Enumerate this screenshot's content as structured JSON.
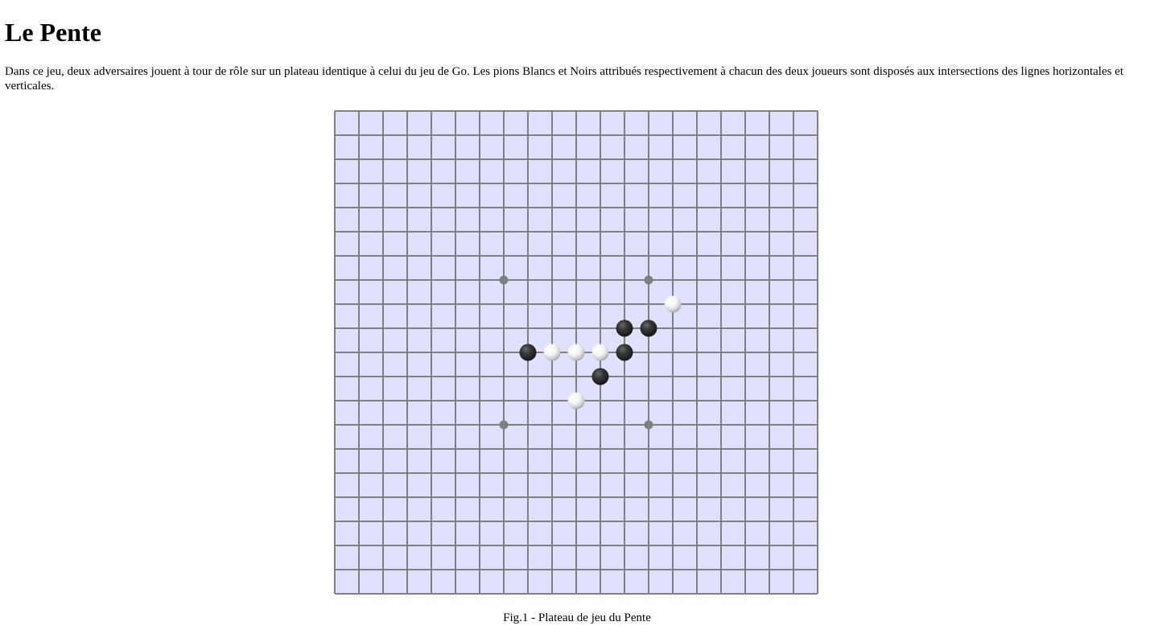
{
  "page": {
    "title": "Le Pente",
    "intro": "Dans ce jeu, deux adversaires jouent à tour de rôle sur un plateau identique à celui du jeu de Go. Les pions Blancs et Noirs attribués respectivement à chacun des deux joueurs sont disposés aux intersections des lignes horizontales et verticales.",
    "caption": "Fig.1 - Plateau de jeu du Pente"
  },
  "board": {
    "columns": 20,
    "rows": 20,
    "background_color": "#e0e0ff",
    "line_color": "#808080",
    "star_color": "#808080",
    "star_points": [
      {
        "col": 7,
        "row": 7
      },
      {
        "col": 13,
        "row": 7
      },
      {
        "col": 7,
        "row": 13
      },
      {
        "col": 13,
        "row": 13
      }
    ],
    "stones": [
      {
        "color": "white",
        "col": 14,
        "row": 8
      },
      {
        "color": "black",
        "col": 12,
        "row": 9
      },
      {
        "color": "black",
        "col": 13,
        "row": 9
      },
      {
        "color": "black",
        "col": 8,
        "row": 10
      },
      {
        "color": "white",
        "col": 9,
        "row": 10
      },
      {
        "color": "white",
        "col": 10,
        "row": 10
      },
      {
        "color": "white",
        "col": 11,
        "row": 10
      },
      {
        "color": "black",
        "col": 12,
        "row": 10
      },
      {
        "color": "black",
        "col": 11,
        "row": 11
      },
      {
        "color": "white",
        "col": 10,
        "row": 12
      }
    ]
  }
}
